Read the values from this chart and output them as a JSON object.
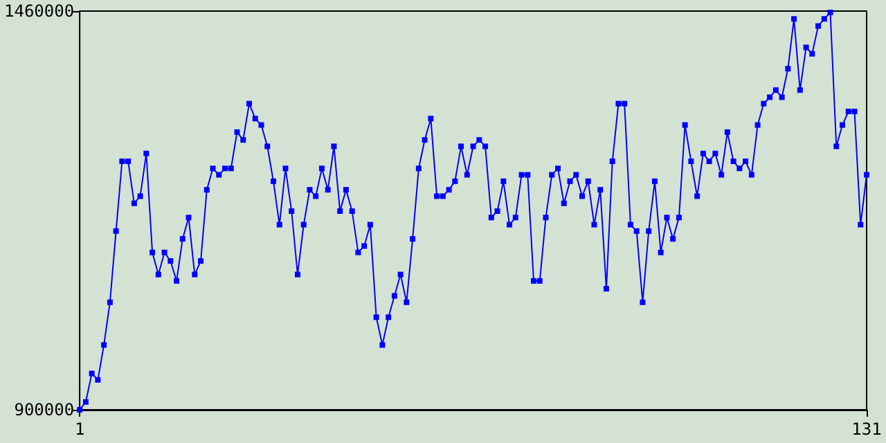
{
  "chart_data": {
    "type": "line",
    "marker": "square",
    "line_style": "solid",
    "x": [
      1,
      2,
      3,
      4,
      5,
      6,
      7,
      8,
      9,
      10,
      11,
      12,
      13,
      14,
      15,
      16,
      17,
      18,
      19,
      20,
      21,
      22,
      23,
      24,
      25,
      26,
      27,
      28,
      29,
      30,
      31,
      32,
      33,
      34,
      35,
      36,
      37,
      38,
      39,
      40,
      41,
      42,
      43,
      44,
      45,
      46,
      47,
      48,
      49,
      50,
      51,
      52,
      53,
      54,
      55,
      56,
      57,
      58,
      59,
      60,
      61,
      62,
      63,
      64,
      65,
      66,
      67,
      68,
      69,
      70,
      71,
      72,
      73,
      74,
      75,
      76,
      77,
      78,
      79,
      80,
      81,
      82,
      83,
      84,
      85,
      86,
      87,
      88,
      89,
      90,
      91,
      92,
      93,
      94,
      95,
      96,
      97,
      98,
      99,
      100,
      101,
      102,
      103,
      104,
      105,
      106,
      107,
      108,
      109,
      110,
      111,
      112,
      113,
      114,
      115,
      116,
      117,
      118,
      119,
      120,
      121,
      122,
      123,
      124,
      125,
      126,
      127,
      128,
      129,
      130,
      131
    ],
    "series": [
      {
        "color": "#0000ff",
        "values": [
          900000,
          911000,
          951000,
          942000,
          991000,
          1051000,
          1151000,
          1249000,
          1249000,
          1190000,
          1200000,
          1260000,
          1121000,
          1090000,
          1121000,
          1109000,
          1081000,
          1140000,
          1170000,
          1090000,
          1109000,
          1209000,
          1239000,
          1230000,
          1239000,
          1239000,
          1290000,
          1279000,
          1330000,
          1309000,
          1300000,
          1270000,
          1221000,
          1160000,
          1239000,
          1179000,
          1090000,
          1160000,
          1209000,
          1200000,
          1239000,
          1209000,
          1270000,
          1179000,
          1209000,
          1179000,
          1121000,
          1130000,
          1160000,
          1030000,
          991000,
          1030000,
          1060000,
          1090000,
          1051000,
          1140000,
          1239000,
          1279000,
          1309000,
          1200000,
          1200000,
          1209000,
          1221000,
          1270000,
          1230000,
          1270000,
          1279000,
          1270000,
          1170000,
          1179000,
          1221000,
          1160000,
          1170000,
          1230000,
          1230000,
          1081000,
          1081000,
          1170000,
          1230000,
          1239000,
          1190000,
          1221000,
          1230000,
          1200000,
          1221000,
          1160000,
          1209000,
          1070000,
          1249000,
          1330000,
          1330000,
          1160000,
          1151000,
          1051000,
          1151000,
          1221000,
          1121000,
          1170000,
          1140000,
          1170000,
          1300000,
          1249000,
          1200000,
          1260000,
          1249000,
          1260000,
          1230000,
          1290000,
          1249000,
          1239000,
          1249000,
          1230000,
          1300000,
          1330000,
          1339000,
          1349000,
          1339000,
          1379000,
          1449000,
          1349000,
          1409000,
          1400000,
          1439000,
          1449000,
          1458000,
          1270000,
          1300000,
          1319000,
          1319000,
          1160000,
          1230000
        ]
      }
    ],
    "xlim": [
      1,
      131
    ],
    "xticks": [
      1,
      131
    ],
    "ylim": [
      900000,
      1460000
    ],
    "yticks": [
      900000,
      1460000
    ]
  }
}
